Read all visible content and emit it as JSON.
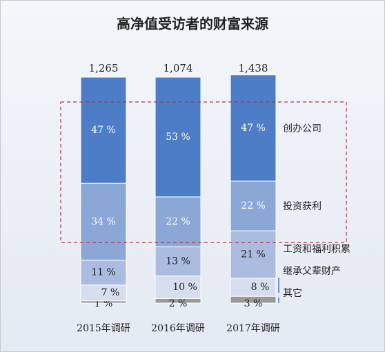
{
  "chart_data": {
    "type": "stacked_bar",
    "title": "高净值受访者的财富来源",
    "categories": [
      "2015年调研",
      "2016年调研",
      "2017年调研"
    ],
    "totals": {
      "values": [
        1265,
        1074,
        1438
      ],
      "value_labels": [
        "1,265",
        "1,074",
        "1,438"
      ]
    },
    "series": [
      {
        "name": "其它",
        "color": "#9a9a9a",
        "values": [
          1,
          2,
          3
        ],
        "value_labels": [
          "1 %",
          "2 %",
          "3 %"
        ]
      },
      {
        "name": "继承父辈财产",
        "color": "#d5ddee",
        "values": [
          7,
          10,
          8
        ],
        "value_labels": [
          "7 %",
          "10 %",
          "8 %"
        ]
      },
      {
        "name": "工资和福利积累",
        "color": "#aabde1",
        "values": [
          11,
          13,
          21
        ],
        "value_labels": [
          "11 %",
          "13 %",
          "21 %"
        ]
      },
      {
        "name": "投资获利",
        "color": "#8ba7d6",
        "values": [
          34,
          22,
          22
        ],
        "value_labels": [
          "34 %",
          "22 %",
          "22 %"
        ]
      },
      {
        "name": "创办公司",
        "color": "#4e7dc8",
        "values": [
          47,
          53,
          47
        ],
        "value_labels": [
          "47 %",
          "53 %",
          "47 %"
        ]
      }
    ]
  }
}
